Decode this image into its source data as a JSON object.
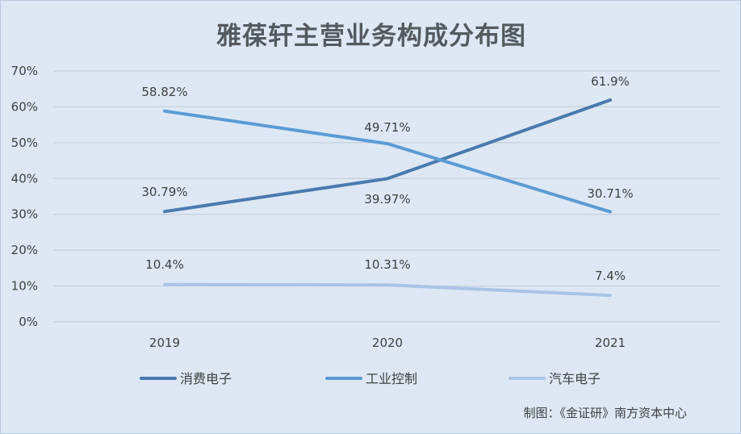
{
  "title": "雅葆轩主营业务构成分布图",
  "credit": "制图：《金证研》南方资本中心",
  "chart_data": {
    "type": "line",
    "title": "雅葆轩主营业务构成分布图",
    "categories": [
      "2019",
      "2020",
      "2021"
    ],
    "yticks": [
      "0%",
      "10%",
      "20%",
      "30%",
      "40%",
      "50%",
      "60%",
      "70%"
    ],
    "ylim": [
      0,
      70
    ],
    "grid": true,
    "legend_position": "bottom",
    "series": [
      {
        "name": "消费电子",
        "values": [
          30.79,
          39.97,
          61.9
        ],
        "labels": [
          "30.79%",
          "39.97%",
          "61.9%"
        ],
        "color": "#4a7aaf"
      },
      {
        "name": "工业控制",
        "values": [
          58.82,
          49.71,
          30.71
        ],
        "labels": [
          "58.82%",
          "49.71%",
          "30.71%"
        ],
        "color": "#5b9bd5"
      },
      {
        "name": "汽车电子",
        "values": [
          10.4,
          10.31,
          7.4
        ],
        "labels": [
          "10.4%",
          "10.31%",
          "7.4%"
        ],
        "color": "#a9c4e6"
      }
    ]
  }
}
